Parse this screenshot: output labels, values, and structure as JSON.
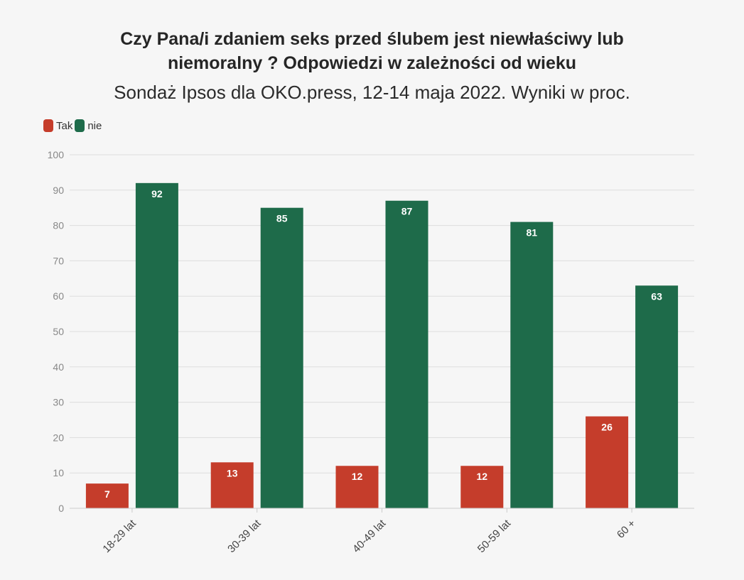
{
  "colors": {
    "tak": "#c53d2b",
    "nie": "#1e6b4a",
    "grid": "#dddddd",
    "axis_text": "#888888"
  },
  "header": {
    "title_line1": "Czy Pana/i zdaniem seks przed ślubem jest niewłaściwy lub",
    "title_line2": "niemoralny ? Odpowiedzi w zależności od wieku",
    "subtitle": "Sondaż Ipsos dla OKO.press, 12-14 maja 2022. Wyniki w proc."
  },
  "legend": {
    "tak": "Tak",
    "nie": "nie"
  },
  "chart_data": {
    "type": "bar",
    "title": "Czy Pana/i zdaniem seks przed ślubem jest niewłaściwy lub niemoralny ? Odpowiedzi w zależności od wieku",
    "subtitle": "Sondaż Ipsos dla OKO.press, 12-14 maja 2022. Wyniki w proc.",
    "categories": [
      "18-29 lat",
      "30-39 lat",
      "40-49 lat",
      "50-59 lat",
      "60 +"
    ],
    "series": [
      {
        "name": "Tak",
        "values": [
          7,
          13,
          12,
          12,
          26
        ]
      },
      {
        "name": "nie",
        "values": [
          92,
          85,
          87,
          81,
          63
        ]
      }
    ],
    "ylim": [
      0,
      100
    ],
    "yticks": [
      0,
      10,
      20,
      30,
      40,
      50,
      60,
      70,
      80,
      90,
      100
    ],
    "grid": true,
    "legend_position": "top-left",
    "data_labels": true
  }
}
